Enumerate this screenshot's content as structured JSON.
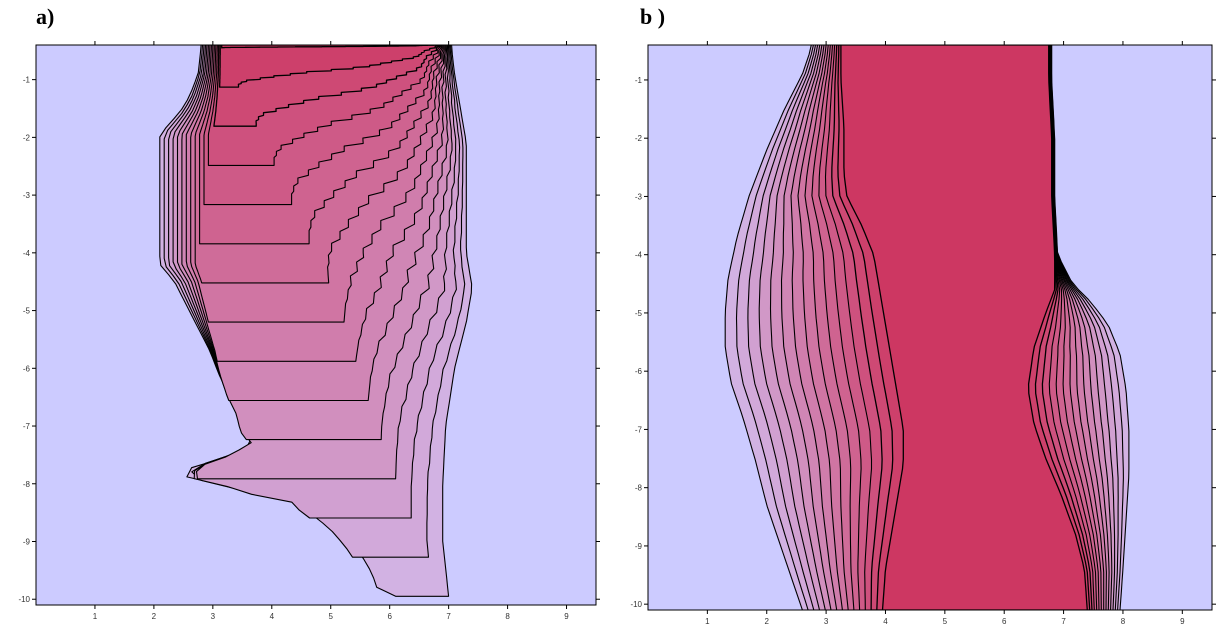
{
  "panels": [
    {
      "label": "a)"
    },
    {
      "label": "b )"
    }
  ],
  "chart_data": [
    {
      "type": "contour",
      "panel": "a)",
      "xlim": [
        0,
        9.5
      ],
      "ylim": [
        -10.1,
        -0.4
      ],
      "xticks": [
        1,
        2,
        3,
        4,
        5,
        6,
        7,
        8,
        9
      ],
      "yticks": [
        -1,
        -2,
        -3,
        -4,
        -5,
        -6,
        -7,
        -8,
        -9,
        -10
      ],
      "levels": 14,
      "colors": {
        "background": "#cccbff",
        "low": "#d2b2e3",
        "high": "#cd3762"
      },
      "outer_boundary": {
        "left": [
          [
            2.8,
            -0.45
          ],
          [
            2.75,
            -0.9
          ],
          [
            2.6,
            -1.3
          ],
          [
            2.45,
            -1.55
          ],
          [
            2.1,
            -1.95
          ],
          [
            2.1,
            -2.5
          ],
          [
            2.1,
            -3.2
          ],
          [
            2.1,
            -3.85
          ],
          [
            2.1,
            -4.2
          ],
          [
            2.35,
            -4.5
          ],
          [
            2.55,
            -4.9
          ],
          [
            2.75,
            -5.3
          ],
          [
            2.95,
            -5.7
          ],
          [
            3.1,
            -6.1
          ],
          [
            3.3,
            -6.5
          ],
          [
            3.5,
            -6.8
          ],
          [
            3.6,
            -7.1
          ],
          [
            3.8,
            -7.3
          ],
          [
            3.2,
            -7.55
          ],
          [
            2.65,
            -7.7
          ],
          [
            2.55,
            -7.9
          ],
          [
            3.1,
            -8.0
          ],
          [
            3.8,
            -8.2
          ],
          [
            4.3,
            -8.0
          ],
          [
            4.6,
            -8.4
          ],
          [
            4.9,
            -8.6
          ],
          [
            5.2,
            -8.85
          ],
          [
            5.5,
            -9.2
          ],
          [
            5.7,
            -9.55
          ],
          [
            5.8,
            -9.85
          ],
          [
            6.1,
            -9.95
          ],
          [
            6.6,
            -9.9
          ],
          [
            6.9,
            -9.9
          ],
          [
            7.0,
            -9.95
          ]
        ],
        "right": [
          [
            7.05,
            -0.45
          ],
          [
            7.1,
            -0.9
          ],
          [
            7.2,
            -1.5
          ],
          [
            7.3,
            -2.1
          ],
          [
            7.3,
            -2.8
          ],
          [
            7.3,
            -3.4
          ],
          [
            7.3,
            -4.0
          ],
          [
            7.4,
            -4.6
          ],
          [
            7.3,
            -5.2
          ],
          [
            7.1,
            -6.0
          ],
          [
            6.95,
            -7.0
          ],
          [
            6.9,
            -8.0
          ],
          [
            6.9,
            -9.0
          ],
          [
            7.0,
            -9.95
          ]
        ]
      },
      "inner_boundary": {
        "left": [
          [
            3.15,
            -0.45
          ],
          [
            3.15,
            -0.9
          ],
          [
            3.2,
            -1.5
          ],
          [
            3.3,
            -2.2
          ],
          [
            3.55,
            -2.9
          ],
          [
            3.8,
            -3.4
          ],
          [
            4.1,
            -3.75
          ],
          [
            4.4,
            -3.95
          ],
          [
            4.85,
            -4.0
          ],
          [
            5.25,
            -4.05
          ],
          [
            5.55,
            -3.95
          ],
          [
            5.75,
            -3.65
          ],
          [
            5.95,
            -3.35
          ],
          [
            6.15,
            -3.1
          ],
          [
            6.35,
            -2.8
          ],
          [
            6.45,
            -2.4
          ],
          [
            6.5,
            -1.95
          ],
          [
            6.55,
            -1.5
          ],
          [
            6.65,
            -1.05
          ],
          [
            6.75,
            -0.6
          ],
          [
            6.8,
            -0.45
          ]
        ],
        "right": []
      }
    },
    {
      "type": "contour",
      "panel": "b )",
      "xlim": [
        0,
        9.5
      ],
      "ylim": [
        -10.1,
        -0.4
      ],
      "xticks": [
        1,
        2,
        3,
        4,
        5,
        6,
        7,
        8,
        9
      ],
      "yticks": [
        -1,
        -2,
        -3,
        -4,
        -5,
        -6,
        -7,
        -8,
        -9,
        -10
      ],
      "levels": 14,
      "colors": {
        "background": "#cccbff",
        "low": "#d2b2e3",
        "high": "#cd3762"
      },
      "outer_boundary": {
        "left": [
          [
            2.75,
            -0.45
          ],
          [
            2.6,
            -0.9
          ],
          [
            2.3,
            -1.5
          ],
          [
            2.0,
            -2.2
          ],
          [
            1.7,
            -3.0
          ],
          [
            1.5,
            -3.7
          ],
          [
            1.35,
            -4.4
          ],
          [
            1.3,
            -5.0
          ],
          [
            1.3,
            -5.6
          ],
          [
            1.4,
            -6.2
          ],
          [
            1.6,
            -6.8
          ],
          [
            1.8,
            -7.5
          ],
          [
            2.0,
            -8.3
          ],
          [
            2.3,
            -9.2
          ],
          [
            2.6,
            -10.1
          ]
        ],
        "right": [
          [
            6.8,
            -0.45
          ],
          [
            6.8,
            -1.0
          ],
          [
            6.85,
            -2.0
          ],
          [
            6.85,
            -3.0
          ],
          [
            6.9,
            -4.0
          ],
          [
            7.15,
            -4.5
          ],
          [
            7.45,
            -4.8
          ],
          [
            7.75,
            -5.2
          ],
          [
            7.95,
            -5.7
          ],
          [
            8.05,
            -6.3
          ],
          [
            8.1,
            -7.0
          ],
          [
            8.1,
            -7.8
          ],
          [
            8.05,
            -8.6
          ],
          [
            8.0,
            -9.4
          ],
          [
            7.95,
            -10.1
          ]
        ]
      },
      "inner_boundary": {
        "left": [
          [
            3.25,
            -0.45
          ],
          [
            3.25,
            -1.0
          ],
          [
            3.3,
            -1.8
          ],
          [
            3.3,
            -2.6
          ],
          [
            3.35,
            -3.0
          ],
          [
            3.6,
            -3.5
          ],
          [
            3.8,
            -4.0
          ],
          [
            3.9,
            -4.6
          ],
          [
            4.0,
            -5.2
          ],
          [
            4.1,
            -5.8
          ],
          [
            4.2,
            -6.4
          ],
          [
            4.3,
            -7.0
          ],
          [
            4.3,
            -7.6
          ],
          [
            4.2,
            -8.2
          ],
          [
            4.1,
            -8.8
          ],
          [
            4.0,
            -9.4
          ],
          [
            3.95,
            -10.1
          ]
        ],
        "right": [
          [
            6.75,
            -0.45
          ],
          [
            6.75,
            -1.0
          ],
          [
            6.8,
            -2.0
          ],
          [
            6.8,
            -3.0
          ],
          [
            6.85,
            -4.0
          ],
          [
            6.85,
            -4.6
          ],
          [
            6.7,
            -5.0
          ],
          [
            6.5,
            -5.6
          ],
          [
            6.4,
            -6.3
          ],
          [
            6.5,
            -6.9
          ],
          [
            6.7,
            -7.5
          ],
          [
            6.95,
            -8.1
          ],
          [
            7.2,
            -8.8
          ],
          [
            7.35,
            -9.4
          ],
          [
            7.4,
            -10.1
          ]
        ]
      }
    }
  ]
}
